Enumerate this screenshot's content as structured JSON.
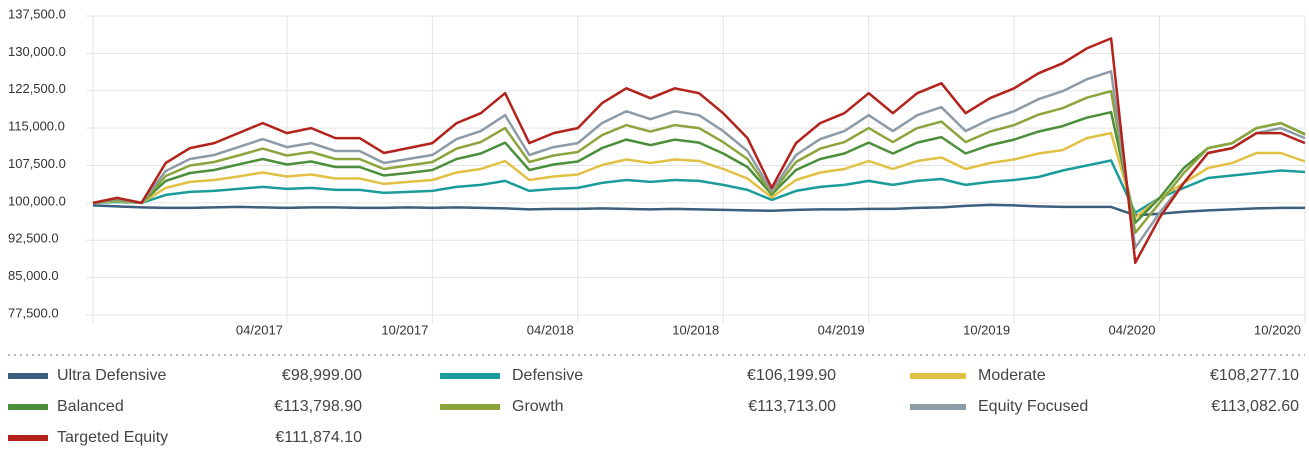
{
  "chart_data": {
    "type": "line",
    "x": [
      "08/2016",
      "09/2016",
      "10/2016",
      "11/2016",
      "12/2016",
      "01/2017",
      "02/2017",
      "03/2017",
      "04/2017",
      "05/2017",
      "06/2017",
      "07/2017",
      "08/2017",
      "09/2017",
      "10/2017",
      "11/2017",
      "12/2017",
      "01/2018",
      "02/2018",
      "03/2018",
      "04/2018",
      "05/2018",
      "06/2018",
      "07/2018",
      "08/2018",
      "09/2018",
      "10/2018",
      "11/2018",
      "12/2018",
      "01/2019",
      "02/2019",
      "03/2019",
      "04/2019",
      "05/2019",
      "06/2019",
      "07/2019",
      "08/2019",
      "09/2019",
      "10/2019",
      "11/2019",
      "12/2019",
      "01/2020",
      "02/2020",
      "03/2020",
      "04/2020",
      "05/2020",
      "06/2020",
      "07/2020",
      "08/2020",
      "09/2020",
      "10/2020"
    ],
    "xlim": [
      "08/2016",
      "10/2020"
    ],
    "xticks": [
      "04/2017",
      "10/2017",
      "04/2018",
      "10/2018",
      "04/2019",
      "10/2019",
      "04/2020",
      "10/2020"
    ],
    "ylim": [
      77500,
      137500
    ],
    "yticks": [
      {
        "value": 77500,
        "label": "77,500.0"
      },
      {
        "value": 85000,
        "label": "85,000.0"
      },
      {
        "value": 92500,
        "label": "92,500.0"
      },
      {
        "value": 100000,
        "label": "100,000.0"
      },
      {
        "value": 107500,
        "label": "107,500.0"
      },
      {
        "value": 115000,
        "label": "115,000.0"
      },
      {
        "value": 122500,
        "label": "122,500.0"
      },
      {
        "value": 130000,
        "label": "130,000.0"
      },
      {
        "value": 137500,
        "label": "137,500.0"
      }
    ],
    "grid": true,
    "series": [
      {
        "name": "Ultra Defensive",
        "latest": "€98,999.00",
        "color": "#3b5f7c",
        "values": [
          99500,
          99300,
          99100,
          99000,
          99000,
          99100,
          99200,
          99100,
          99000,
          99100,
          99100,
          99000,
          99000,
          99100,
          99000,
          99100,
          99000,
          98900,
          98700,
          98800,
          98800,
          98900,
          98800,
          98700,
          98800,
          98700,
          98600,
          98500,
          98400,
          98600,
          98700,
          98700,
          98800,
          98800,
          99000,
          99100,
          99400,
          99600,
          99500,
          99300,
          99200,
          99200,
          99200,
          97500,
          97800,
          98200,
          98500,
          98700,
          98900,
          99000,
          99000
        ]
      },
      {
        "name": "Defensive",
        "latest": "€106,199.90",
        "color": "#1a9d9a",
        "values": [
          100000,
          100200,
          100000,
          101600,
          102200,
          102400,
          102800,
          103200,
          102800,
          103000,
          102600,
          102600,
          102000,
          102200,
          102400,
          103200,
          103600,
          104400,
          102400,
          102800,
          103000,
          104000,
          104600,
          104200,
          104600,
          104400,
          103600,
          102600,
          100600,
          102400,
          103200,
          103600,
          104400,
          103600,
          104400,
          104800,
          103600,
          104200,
          104600,
          105200,
          106500,
          107500,
          108500,
          98000,
          101000,
          103000,
          105000,
          105500,
          106000,
          106500,
          106200
        ]
      },
      {
        "name": "Moderate",
        "latest": "€108,277.10",
        "color": "#e2c044",
        "values": [
          100000,
          100400,
          100000,
          103000,
          104200,
          104600,
          105300,
          106100,
          105300,
          105700,
          104900,
          104900,
          103800,
          104200,
          104600,
          106100,
          106800,
          108400,
          104600,
          105300,
          105700,
          107600,
          108700,
          108000,
          108700,
          108400,
          106800,
          104900,
          101100,
          104600,
          106100,
          106800,
          108400,
          106800,
          108400,
          109100,
          106800,
          108000,
          108700,
          109900,
          110600,
          113000,
          114000,
          97000,
          101000,
          104000,
          107000,
          108000,
          110000,
          110000,
          108300
        ]
      },
      {
        "name": "Balanced",
        "latest": "€113,798.90",
        "color": "#4b8f3a",
        "values": [
          100000,
          100600,
          100000,
          104400,
          106000,
          106600,
          107700,
          108800,
          107700,
          108300,
          107200,
          107200,
          105500,
          106000,
          106600,
          108800,
          109900,
          112100,
          106600,
          107700,
          108300,
          111000,
          112700,
          111600,
          112700,
          112100,
          109900,
          107200,
          101700,
          106600,
          108800,
          109900,
          112100,
          109900,
          112100,
          113200,
          109900,
          111600,
          112700,
          114300,
          115400,
          117100,
          118200,
          96000,
          101000,
          107000,
          111000,
          112000,
          115000,
          116000,
          113800
        ]
      },
      {
        "name": "Growth",
        "latest": "€113,713.00",
        "color": "#8ca43c",
        "values": [
          100000,
          100700,
          100000,
          105400,
          107500,
          108200,
          109500,
          110900,
          109500,
          110200,
          108800,
          108800,
          106800,
          107500,
          108200,
          110900,
          112200,
          115000,
          108200,
          109500,
          110200,
          113600,
          115600,
          114300,
          115600,
          115000,
          112200,
          108800,
          102000,
          108200,
          110900,
          112200,
          115000,
          112200,
          115000,
          116300,
          112200,
          114300,
          115600,
          117700,
          119000,
          121100,
          122400,
          94000,
          100000,
          106000,
          111000,
          112000,
          115000,
          116000,
          113700
        ]
      },
      {
        "name": "Equity Focused",
        "latest": "€113,082.60",
        "color": "#8d9ba7",
        "values": [
          100000,
          100800,
          100000,
          106400,
          108800,
          109600,
          111200,
          112800,
          111200,
          112000,
          110400,
          110400,
          108000,
          108800,
          109600,
          112800,
          114400,
          117600,
          109600,
          111200,
          112000,
          116000,
          118400,
          116800,
          118400,
          117600,
          114400,
          110400,
          102400,
          109600,
          112800,
          114400,
          117600,
          114400,
          117600,
          119200,
          114400,
          116800,
          118400,
          120800,
          122400,
          124800,
          126400,
          91000,
          98000,
          104000,
          110000,
          111000,
          114000,
          115000,
          113000
        ]
      },
      {
        "name": "Targeted Equity",
        "latest": "€111,874.10",
        "color": "#b3221b",
        "values": [
          100000,
          101000,
          100000,
          108000,
          111000,
          112000,
          114000,
          116000,
          114000,
          115000,
          113000,
          113000,
          110000,
          111000,
          112000,
          116000,
          118000,
          122000,
          112000,
          114000,
          115000,
          120000,
          123000,
          121000,
          123000,
          122000,
          118000,
          113000,
          103000,
          112000,
          116000,
          118000,
          122000,
          118000,
          122000,
          124000,
          118000,
          121000,
          123000,
          126000,
          128000,
          131000,
          133000,
          88000,
          97000,
          104000,
          110000,
          111000,
          114000,
          114000,
          112000
        ]
      }
    ]
  }
}
